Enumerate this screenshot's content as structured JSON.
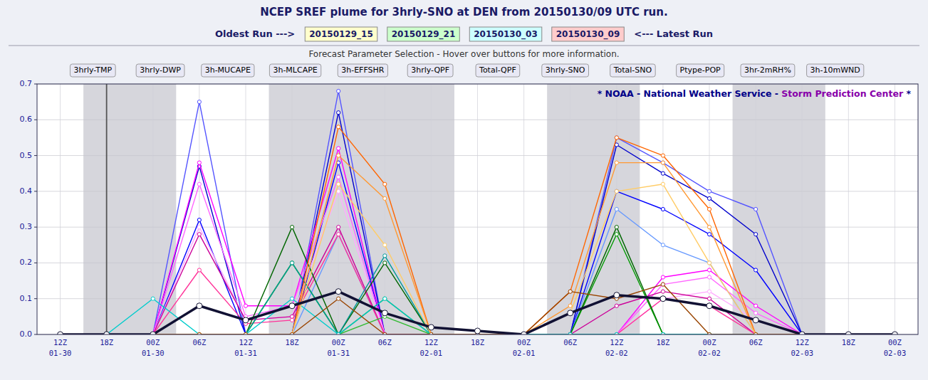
{
  "chart_data": {
    "type": "line",
    "title": "NCEP SREF plume for 3hrly-SNO at DEN from 20150130/09 UTC run.",
    "run_label_left": "Oldest Run --->",
    "run_dates": [
      "20150129_15",
      "20150129_21",
      "20150130_03",
      "20150130_09"
    ],
    "run_date_colors": [
      "#ffffcc",
      "#ccffcc",
      "#ccffff",
      "#ffcccc"
    ],
    "run_label_right": "<--- Latest Run",
    "subtitle": "Forecast Parameter Selection - Hover over buttons for more information.",
    "buttons": [
      "3hrly-TMP",
      "3hrly-DWP",
      "3h-MUCAPE",
      "3h-MLCAPE",
      "3h-EFFSHR",
      "3hrly-QPF",
      "Total-QPF",
      "3hrly-SNO",
      "Total-SNO",
      "Ptype-POP",
      "3hr-2mRH%",
      "3h-10mWND"
    ],
    "watermark": [
      "* NOAA - National Weather Service - ",
      "Storm Prediction Center",
      " *"
    ],
    "categories": [
      "12Z",
      "18Z",
      "00Z",
      "06Z",
      "12Z",
      "18Z",
      "00Z",
      "06Z",
      "12Z",
      "18Z",
      "00Z",
      "06Z",
      "12Z",
      "18Z",
      "00Z",
      "06Z",
      "12Z",
      "18Z",
      "00Z"
    ],
    "category_dates": [
      "01-30",
      null,
      "01-30",
      null,
      "01-31",
      null,
      "01-31",
      null,
      "02-01",
      null,
      "02-01",
      null,
      "02-02",
      null,
      "02-02",
      null,
      "02-03",
      null,
      "02-03"
    ],
    "shaded_ranges": [
      [
        1,
        3
      ],
      [
        5,
        9
      ],
      [
        11,
        13
      ],
      [
        15,
        17
      ]
    ],
    "marker_line_x": 1,
    "ylim": [
      0.0,
      0.7
    ],
    "yticks": [
      {
        "value": 0.0,
        "label": "0.0"
      },
      0.1,
      0.2,
      0.3,
      0.4,
      0.5,
      0.6,
      0.7
    ],
    "grid": true,
    "marker": "circle",
    "series": [
      {
        "color": "#5555ff",
        "values": [
          0,
          0,
          0,
          0.65,
          0,
          0.0,
          0.68,
          0,
          0,
          0,
          0,
          0,
          0.55,
          0.48,
          0.4,
          0.35,
          0,
          0,
          0
        ]
      },
      {
        "color": "#0000cc",
        "values": [
          0,
          0,
          0,
          0.47,
          0,
          0.0,
          0.62,
          0,
          0,
          0,
          0,
          0,
          0.53,
          0.45,
          0.38,
          0.28,
          0,
          0,
          0
        ]
      },
      {
        "color": "#0000ff",
        "values": [
          0,
          0,
          0,
          0.32,
          0,
          0.0,
          0.48,
          0,
          0,
          0,
          0,
          0,
          0.4,
          0.35,
          0.28,
          0.18,
          0,
          0,
          0
        ]
      },
      {
        "color": "#6699ff",
        "values": [
          0,
          0,
          0,
          0.0,
          0,
          0.0,
          0.28,
          0,
          0,
          0,
          0,
          0,
          0.35,
          0.25,
          0.2,
          0.0,
          0,
          0,
          0
        ]
      },
      {
        "color": "#ff00ff",
        "values": [
          0,
          0,
          0,
          0.48,
          0.08,
          0.08,
          0.52,
          0,
          0,
          0,
          0,
          0,
          0.0,
          0.16,
          0.18,
          0.08,
          0,
          0,
          0
        ]
      },
      {
        "color": "#ff66ff",
        "values": [
          0,
          0,
          0,
          0.42,
          0.05,
          0.08,
          0.44,
          0,
          0,
          0,
          0,
          0,
          0.0,
          0.14,
          0.16,
          0.06,
          0,
          0,
          0
        ]
      },
      {
        "color": "#ffaaff",
        "values": [
          0,
          0,
          0,
          0.3,
          0.04,
          0.05,
          0.4,
          0,
          0,
          0,
          0,
          0,
          0.0,
          0.1,
          0.12,
          0.04,
          0,
          0,
          0
        ]
      },
      {
        "color": "#cc0099",
        "values": [
          0,
          0,
          0,
          0.28,
          0.04,
          0.05,
          0.3,
          0,
          0,
          0,
          0,
          0,
          0.08,
          0.12,
          0.1,
          0.0,
          0,
          0,
          0
        ]
      },
      {
        "color": "#ff3399",
        "values": [
          0,
          0,
          0,
          0.18,
          0.03,
          0.04,
          0.28,
          0,
          0,
          0,
          0,
          0,
          0.0,
          0.1,
          0.08,
          0.0,
          0,
          0,
          0
        ]
      },
      {
        "color": "#006600",
        "values": [
          0,
          0,
          0,
          0.0,
          0.0,
          0.3,
          0.0,
          0.2,
          0,
          0,
          0,
          0,
          0.3,
          0.0,
          0.0,
          0.0,
          0,
          0,
          0
        ]
      },
      {
        "color": "#009900",
        "values": [
          0,
          0,
          0,
          0.0,
          0.0,
          0.2,
          0.0,
          0.1,
          0,
          0,
          0,
          0,
          0.28,
          0.0,
          0.0,
          0.0,
          0,
          0,
          0
        ]
      },
      {
        "color": "#33bb33",
        "values": [
          0,
          0,
          0,
          0.0,
          0.0,
          0.2,
          0.0,
          0.05,
          0,
          0,
          0,
          0,
          0.0,
          0.0,
          0.0,
          0.0,
          0,
          0,
          0
        ]
      },
      {
        "color": "#009999",
        "values": [
          0,
          0,
          0,
          0.0,
          0.0,
          0.2,
          0.0,
          0.22,
          0,
          0,
          0,
          0,
          0.0,
          0.0,
          0.0,
          0.0,
          0,
          0,
          0
        ]
      },
      {
        "color": "#00cccc",
        "values": [
          0,
          0,
          0.1,
          0.0,
          0.0,
          0.1,
          0.0,
          0.1,
          0,
          0,
          0,
          0,
          0.0,
          0.0,
          0.0,
          0.0,
          0,
          0,
          0
        ]
      },
      {
        "color": "#ff6600",
        "values": [
          0,
          0,
          0,
          0.0,
          0.0,
          0.0,
          0.58,
          0.42,
          0,
          0,
          0,
          0.12,
          0.55,
          0.5,
          0.35,
          0.0,
          0,
          0,
          0
        ]
      },
      {
        "color": "#ff9933",
        "values": [
          0,
          0,
          0,
          0.0,
          0.0,
          0.0,
          0.5,
          0.38,
          0,
          0,
          0,
          0.08,
          0.48,
          0.48,
          0.3,
          0.0,
          0,
          0,
          0
        ]
      },
      {
        "color": "#ffcc66",
        "values": [
          0,
          0,
          0,
          0.0,
          0.0,
          0.0,
          0.42,
          0.25,
          0,
          0,
          0,
          0.06,
          0.4,
          0.42,
          0.2,
          0.0,
          0,
          0,
          0
        ]
      },
      {
        "color": "#994400",
        "values": [
          0,
          0,
          0,
          0.0,
          0.0,
          0.0,
          0.1,
          0.0,
          0,
          0,
          0,
          0.12,
          0.1,
          0.14,
          0.0,
          0.0,
          0,
          0,
          0
        ]
      },
      {
        "color": "#111133",
        "line_style": "bold",
        "values": [
          0,
          0,
          0,
          0.08,
          0.04,
          0.08,
          0.12,
          0.06,
          0.02,
          0.01,
          0,
          0.06,
          0.11,
          0.1,
          0.08,
          0.04,
          0,
          0,
          0
        ]
      }
    ]
  }
}
